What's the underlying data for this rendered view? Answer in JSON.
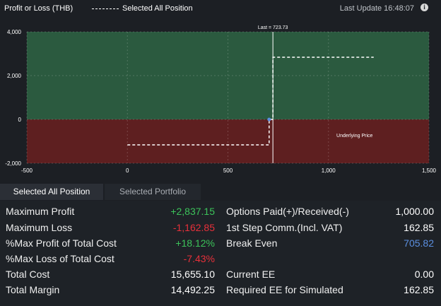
{
  "header": {
    "title": "Profit or Loss (THB)",
    "legend_label": "Selected All Position",
    "last_update": "Last Update 16:48:07",
    "info_icon": "info-icon"
  },
  "chart_data": {
    "type": "line",
    "title": "",
    "xlabel": "Underlying Price",
    "ylabel": "",
    "xlim": [
      -500,
      1500
    ],
    "ylim": [
      -2000,
      4000
    ],
    "x_ticks": [
      "-500",
      "0",
      "500",
      "1,000",
      "1,500"
    ],
    "y_ticks": [
      "4,000",
      "2,000",
      "0",
      "-2,000"
    ],
    "last_label": "Last = 723.73",
    "last_value": 723.73,
    "series": [
      {
        "x": [
          0,
          705,
          705,
          723.73,
          723.73,
          1225
        ],
        "y": [
          -1162.85,
          -1162.85,
          0,
          0,
          2837.15,
          2837.15
        ]
      }
    ],
    "colors": {
      "profit_zone": "#2b5a3f",
      "loss_zone": "#5e1f20",
      "line": "#ffffff",
      "last_line": "#ffffff"
    },
    "grid": true
  },
  "tabs": [
    {
      "label": "Selected All Position",
      "active": true
    },
    {
      "label": "Selected Portfolio",
      "active": false
    }
  ],
  "stats": {
    "left": [
      {
        "label": "Maximum Profit",
        "value": "+2,837.15"
      },
      {
        "label": "Maximum Loss",
        "value": "-1,162.85"
      },
      {
        "label": "%Max Profit of Total Cost",
        "value": "+18.12%"
      },
      {
        "label": "%Max Loss of Total Cost",
        "value": "-7.43%"
      },
      {
        "label": "Total Cost",
        "value": "15,655.10"
      },
      {
        "label": "Total Margin",
        "value": "14,492.25"
      }
    ],
    "right": [
      {
        "label": "Options Paid(+)/Received(-)",
        "value": "1,000.00"
      },
      {
        "label": "1st Step Comm.(Incl. VAT)",
        "value": "162.85"
      },
      {
        "label": "Break Even",
        "value": "705.82"
      },
      {
        "label": "",
        "value": ""
      },
      {
        "label": "Current EE",
        "value": "0.00"
      },
      {
        "label": "Required EE for Simulated",
        "value": "162.85"
      }
    ]
  }
}
